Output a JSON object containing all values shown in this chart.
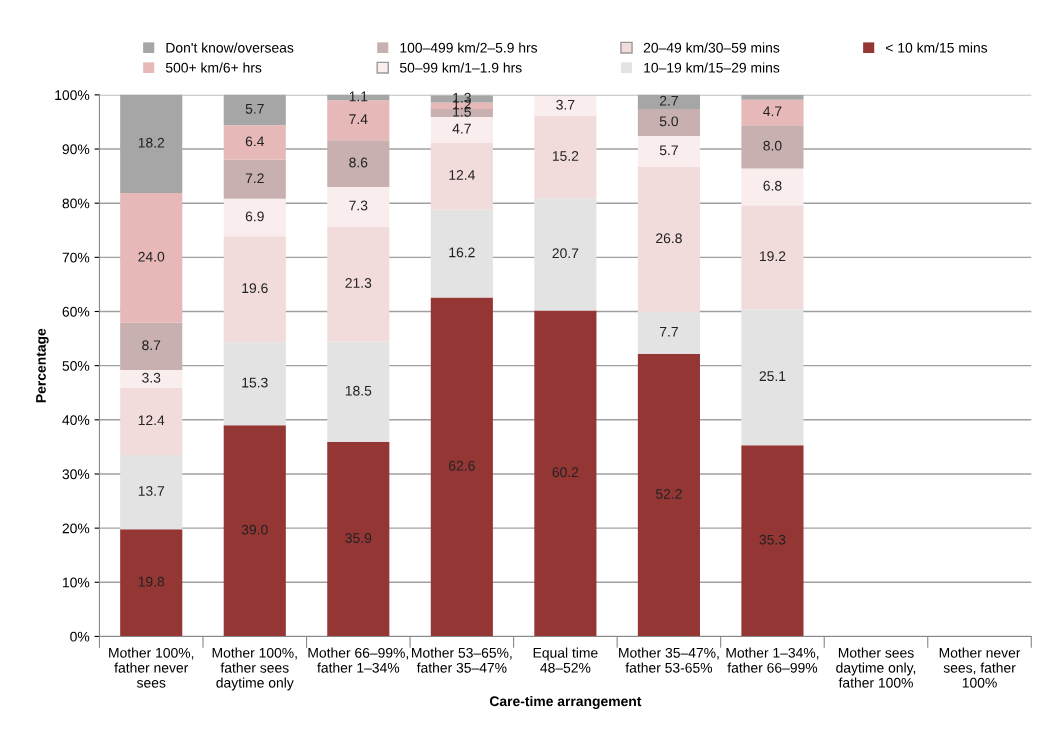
{
  "chart_data": {
    "type": "bar",
    "stacked": true,
    "xlabel": "Care-time arrangement",
    "ylabel": "Percentage",
    "categories": [
      "Mother 100%, father never sees",
      "Mother 100%, father sees daytime only",
      "Mother 66–99%, father 1–34%",
      "Mother 53–65%, father 35–47%",
      "Equal time 48–52%",
      "Mother 35–47%, father 53-65%",
      "Mother 1–34%, father 66–99%",
      "Mother sees daytime only, father 100%",
      "Mother never sees, father 100%"
    ],
    "series": [
      {
        "name": "< 10 km/15 mins",
        "color": "#943634",
        "values": [
          19.8,
          39.0,
          35.9,
          62.6,
          60.2,
          52.2,
          35.3,
          null,
          null
        ],
        "value_labels": [
          "19.8",
          "39.0",
          "35.9",
          "62.6",
          "60.2",
          "52.2",
          "35.3",
          null,
          null
        ]
      },
      {
        "name": "10–19 km/15–29 mins",
        "color": "#e3e3e3",
        "values": [
          13.7,
          15.3,
          18.5,
          16.2,
          20.7,
          7.7,
          25.1,
          null,
          null
        ],
        "value_labels": [
          "13.7",
          "15.3",
          "18.5",
          "16.2",
          "20.7",
          "7.7",
          "25.1",
          null,
          null
        ]
      },
      {
        "name": "20–49 km/30–59 mins",
        "color": "#f2dcdb",
        "values": [
          12.4,
          19.6,
          21.3,
          12.4,
          15.2,
          26.8,
          19.2,
          null,
          null
        ],
        "value_labels": [
          "12.4",
          "19.6",
          "21.3",
          "12.4",
          "15.2",
          "26.8",
          "19.2",
          null,
          null
        ]
      },
      {
        "name": "50–99 km/1–1.9 hrs",
        "color": "#f9eded",
        "values": [
          3.3,
          6.9,
          7.3,
          4.7,
          3.7,
          5.7,
          6.8,
          null,
          null
        ],
        "value_labels": [
          "3.3",
          "6.9",
          "7.3",
          "4.7",
          "3.7",
          "5.7",
          "6.8",
          null,
          null
        ]
      },
      {
        "name": "100–499 km/2–5.9 hrs",
        "color": "#c8b0b0",
        "values": [
          8.7,
          7.2,
          8.6,
          1.5,
          null,
          5.0,
          8.0,
          null,
          null
        ],
        "value_labels": [
          "8.7",
          "7.2",
          "8.6",
          "1.5",
          null,
          "5.0",
          "8.0",
          null,
          null
        ]
      },
      {
        "name": "500+ km/6+ hrs",
        "color": "#e6b9b8",
        "values": [
          24.0,
          6.4,
          7.4,
          1.2,
          null,
          null,
          4.7,
          null,
          null
        ],
        "value_labels": [
          "24.0",
          "6.4",
          "7.4",
          "1.2",
          null,
          null,
          "4.7",
          null,
          null
        ]
      },
      {
        "name": "Don't know/overseas",
        "color": "#a6a6a6",
        "values": [
          18.2,
          5.7,
          1.1,
          1.3,
          null,
          2.7,
          0.9,
          null,
          null
        ],
        "value_labels": [
          "18.2",
          "5.7",
          "1.1",
          "1.3",
          null,
          "2.7",
          null,
          null,
          null
        ]
      }
    ],
    "ylim": [
      0,
      100
    ],
    "yticks": [
      {
        "value": 0,
        "label": "0%"
      },
      {
        "value": 10,
        "label": "10%"
      },
      {
        "value": 20,
        "label": "20%"
      },
      {
        "value": 30,
        "label": "30%"
      },
      {
        "value": 40,
        "label": "40%"
      },
      {
        "value": 50,
        "label": "50%"
      },
      {
        "value": 60,
        "label": "60%"
      },
      {
        "value": 70,
        "label": "70%"
      },
      {
        "value": 80,
        "label": "80%"
      },
      {
        "value": 90,
        "label": "90%"
      },
      {
        "value": 100,
        "label": "100%"
      }
    ],
    "grid": "y",
    "legend": "top"
  }
}
